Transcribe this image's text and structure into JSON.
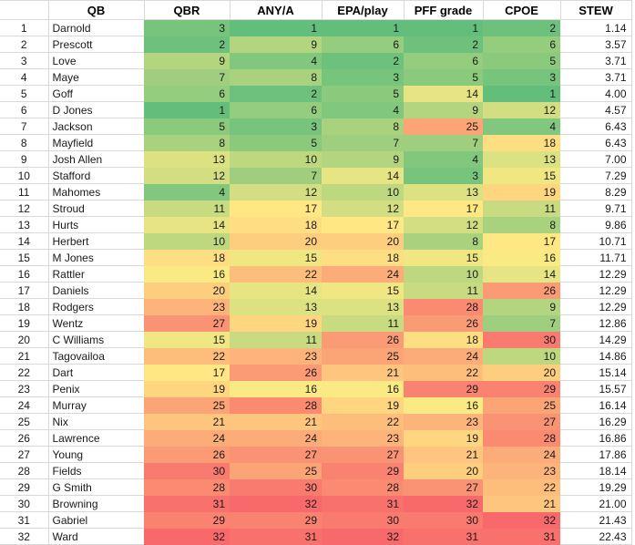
{
  "table": {
    "columns": [
      {
        "key": "rownum",
        "label": ""
      },
      {
        "key": "name",
        "label": "QB"
      },
      {
        "key": "qbr",
        "label": "QBR"
      },
      {
        "key": "anya",
        "label": "ANY/A"
      },
      {
        "key": "epa",
        "label": "EPA/play"
      },
      {
        "key": "pff",
        "label": "PFF grade"
      },
      {
        "key": "cpoe",
        "label": "CPOE"
      },
      {
        "key": "stew",
        "label": "STEW"
      }
    ],
    "rank_columns": [
      "qbr",
      "anya",
      "epa",
      "pff",
      "cpoe"
    ],
    "color_scale": {
      "min_value": 1,
      "mid_value": 16.5,
      "max_value": 32,
      "min_color": "#63BE7B",
      "mid_color": "#FFEB84",
      "max_color": "#F8696B"
    },
    "rows": [
      {
        "rownum": 1,
        "name": "Darnold",
        "qbr": 3,
        "anya": 1,
        "epa": 1,
        "pff": 1,
        "cpoe": 2,
        "stew": "1.14"
      },
      {
        "rownum": 2,
        "name": "Prescott",
        "qbr": 2,
        "anya": 9,
        "epa": 6,
        "pff": 2,
        "cpoe": 6,
        "stew": "3.57"
      },
      {
        "rownum": 3,
        "name": "Love",
        "qbr": 9,
        "anya": 4,
        "epa": 2,
        "pff": 6,
        "cpoe": 5,
        "stew": "3.71"
      },
      {
        "rownum": 4,
        "name": "Maye",
        "qbr": 7,
        "anya": 8,
        "epa": 3,
        "pff": 5,
        "cpoe": 3,
        "stew": "3.71"
      },
      {
        "rownum": 5,
        "name": "Goff",
        "qbr": 6,
        "anya": 2,
        "epa": 5,
        "pff": 14,
        "cpoe": 1,
        "stew": "4.00"
      },
      {
        "rownum": 6,
        "name": "D Jones",
        "qbr": 1,
        "anya": 6,
        "epa": 4,
        "pff": 9,
        "cpoe": 12,
        "stew": "4.57"
      },
      {
        "rownum": 7,
        "name": "Jackson",
        "qbr": 5,
        "anya": 3,
        "epa": 8,
        "pff": 25,
        "cpoe": 4,
        "stew": "6.43"
      },
      {
        "rownum": 8,
        "name": "Mayfield",
        "qbr": 8,
        "anya": 5,
        "epa": 7,
        "pff": 7,
        "cpoe": 18,
        "stew": "6.43"
      },
      {
        "rownum": 9,
        "name": "Josh Allen",
        "qbr": 13,
        "anya": 10,
        "epa": 9,
        "pff": 4,
        "cpoe": 13,
        "stew": "7.00"
      },
      {
        "rownum": 10,
        "name": "Stafford",
        "qbr": 12,
        "anya": 7,
        "epa": 14,
        "pff": 3,
        "cpoe": 15,
        "stew": "7.29"
      },
      {
        "rownum": 11,
        "name": "Mahomes",
        "qbr": 4,
        "anya": 12,
        "epa": 10,
        "pff": 13,
        "cpoe": 19,
        "stew": "8.29"
      },
      {
        "rownum": 12,
        "name": "Stroud",
        "qbr": 11,
        "anya": 17,
        "epa": 12,
        "pff": 17,
        "cpoe": 11,
        "stew": "9.71"
      },
      {
        "rownum": 13,
        "name": "Hurts",
        "qbr": 14,
        "anya": 18,
        "epa": 17,
        "pff": 12,
        "cpoe": 8,
        "stew": "9.86"
      },
      {
        "rownum": 14,
        "name": "Herbert",
        "qbr": 10,
        "anya": 20,
        "epa": 20,
        "pff": 8,
        "cpoe": 17,
        "stew": "10.71"
      },
      {
        "rownum": 15,
        "name": "M Jones",
        "qbr": 18,
        "anya": 15,
        "epa": 18,
        "pff": 15,
        "cpoe": 16,
        "stew": "11.71"
      },
      {
        "rownum": 16,
        "name": "Rattler",
        "qbr": 16,
        "anya": 22,
        "epa": 24,
        "pff": 10,
        "cpoe": 14,
        "stew": "12.29"
      },
      {
        "rownum": 17,
        "name": "Daniels",
        "qbr": 20,
        "anya": 14,
        "epa": 15,
        "pff": 11,
        "cpoe": 26,
        "stew": "12.29"
      },
      {
        "rownum": 18,
        "name": "Rodgers",
        "qbr": 23,
        "anya": 13,
        "epa": 13,
        "pff": 28,
        "cpoe": 9,
        "stew": "12.29"
      },
      {
        "rownum": 19,
        "name": "Wentz",
        "qbr": 27,
        "anya": 19,
        "epa": 11,
        "pff": 26,
        "cpoe": 7,
        "stew": "12.86"
      },
      {
        "rownum": 20,
        "name": "C Williams",
        "qbr": 15,
        "anya": 11,
        "epa": 26,
        "pff": 18,
        "cpoe": 30,
        "stew": "14.29"
      },
      {
        "rownum": 21,
        "name": "Tagovailoa",
        "qbr": 22,
        "anya": 23,
        "epa": 25,
        "pff": 24,
        "cpoe": 10,
        "stew": "14.86"
      },
      {
        "rownum": 22,
        "name": "Dart",
        "qbr": 17,
        "anya": 26,
        "epa": 21,
        "pff": 22,
        "cpoe": 20,
        "stew": "15.14"
      },
      {
        "rownum": 23,
        "name": "Penix",
        "qbr": 19,
        "anya": 16,
        "epa": 16,
        "pff": 29,
        "cpoe": 29,
        "stew": "15.57"
      },
      {
        "rownum": 24,
        "name": "Murray",
        "qbr": 25,
        "anya": 28,
        "epa": 19,
        "pff": 16,
        "cpoe": 25,
        "stew": "16.14"
      },
      {
        "rownum": 25,
        "name": "Nix",
        "qbr": 21,
        "anya": 21,
        "epa": 22,
        "pff": 23,
        "cpoe": 27,
        "stew": "16.29"
      },
      {
        "rownum": 26,
        "name": "Lawrence",
        "qbr": 24,
        "anya": 24,
        "epa": 23,
        "pff": 19,
        "cpoe": 28,
        "stew": "16.86"
      },
      {
        "rownum": 27,
        "name": "Young",
        "qbr": 26,
        "anya": 27,
        "epa": 27,
        "pff": 21,
        "cpoe": 24,
        "stew": "17.86"
      },
      {
        "rownum": 28,
        "name": "Fields",
        "qbr": 30,
        "anya": 25,
        "epa": 29,
        "pff": 20,
        "cpoe": 23,
        "stew": "18.14"
      },
      {
        "rownum": 29,
        "name": "G Smith",
        "qbr": 28,
        "anya": 30,
        "epa": 28,
        "pff": 27,
        "cpoe": 22,
        "stew": "19.29"
      },
      {
        "rownum": 30,
        "name": "Browning",
        "qbr": 31,
        "anya": 32,
        "epa": 31,
        "pff": 32,
        "cpoe": 21,
        "stew": "21.00"
      },
      {
        "rownum": 31,
        "name": "Gabriel",
        "qbr": 29,
        "anya": 29,
        "epa": 30,
        "pff": 30,
        "cpoe": 32,
        "stew": "21.43"
      },
      {
        "rownum": 32,
        "name": "Ward",
        "qbr": 32,
        "anya": 31,
        "epa": 32,
        "pff": 31,
        "cpoe": 31,
        "stew": "22.43"
      }
    ]
  }
}
